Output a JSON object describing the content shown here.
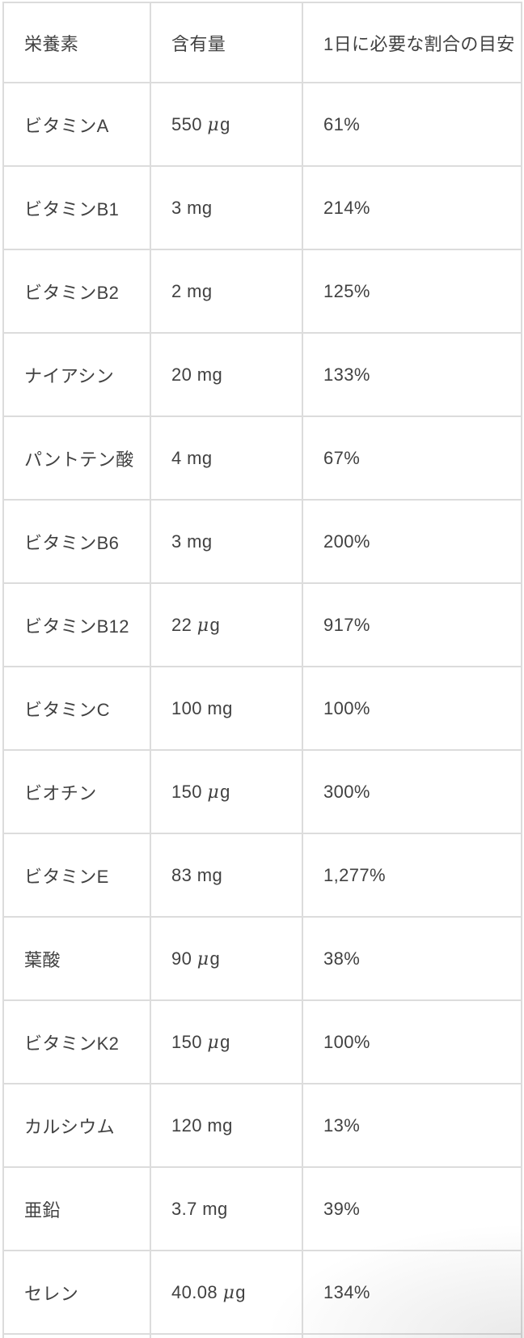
{
  "table": {
    "columns": [
      "栄養素",
      "含有量",
      "1日に必要な割合の目安"
    ],
    "rows": [
      {
        "nutrient": "ビタミンA",
        "amount": "550 μg",
        "daily": "61%"
      },
      {
        "nutrient": "ビタミンB1",
        "amount": "3 mg",
        "daily": "214%"
      },
      {
        "nutrient": "ビタミンB2",
        "amount": "2 mg",
        "daily": "125%"
      },
      {
        "nutrient": "ナイアシン",
        "amount": "20 mg",
        "daily": "133%"
      },
      {
        "nutrient": "パントテン酸",
        "amount": "4 mg",
        "daily": "67%"
      },
      {
        "nutrient": "ビタミンB6",
        "amount": "3 mg",
        "daily": "200%"
      },
      {
        "nutrient": "ビタミンB12",
        "amount": "22 μg",
        "daily": "917%"
      },
      {
        "nutrient": "ビタミンC",
        "amount": "100 mg",
        "daily": "100%"
      },
      {
        "nutrient": "ビオチン",
        "amount": "150 μg",
        "daily": "300%"
      },
      {
        "nutrient": "ビタミンE",
        "amount": "83 mg",
        "daily": "1,277%"
      },
      {
        "nutrient": "葉酸",
        "amount": "90 μg",
        "daily": "38%"
      },
      {
        "nutrient": "ビタミンK2",
        "amount": "150 μg",
        "daily": "100%"
      },
      {
        "nutrient": "カルシウム",
        "amount": "120 mg",
        "daily": "13%"
      },
      {
        "nutrient": "亜鉛",
        "amount": "3.7 mg",
        "daily": "39%"
      },
      {
        "nutrient": "セレン",
        "amount": "40.08 μg",
        "daily": "134%"
      }
    ]
  },
  "colors": {
    "text": "#414141",
    "border": "#dcdcdc",
    "background": "#ffffff"
  }
}
